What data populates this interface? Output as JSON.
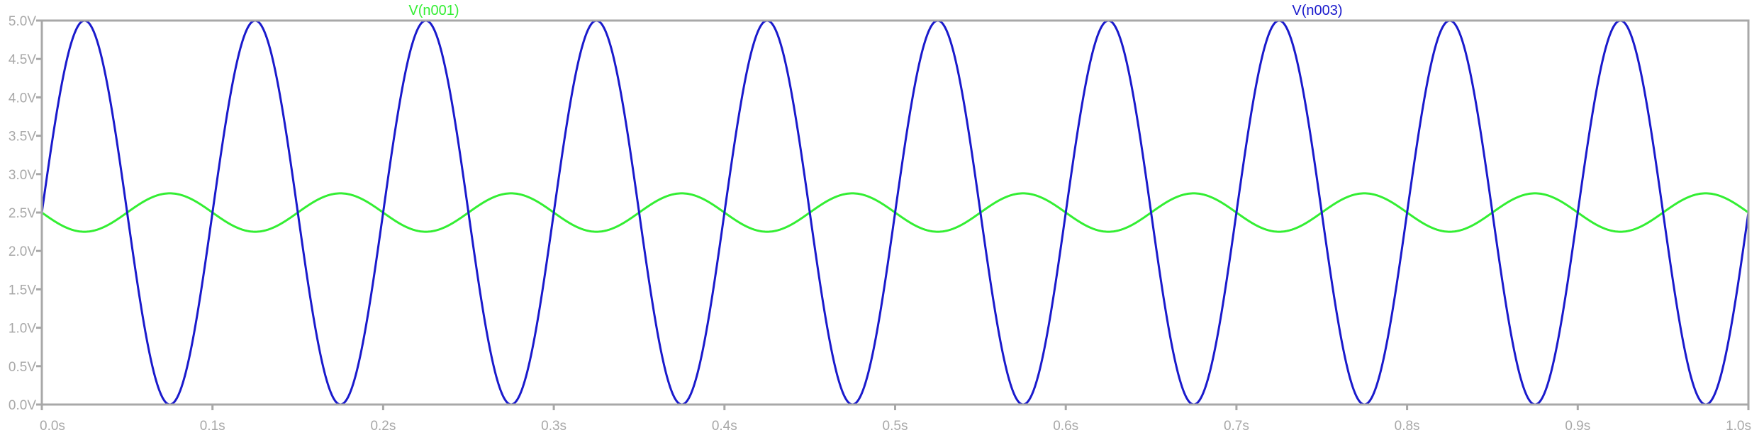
{
  "chart_data": {
    "type": "line",
    "x_range": [
      0.0,
      1.0
    ],
    "y_range": [
      0.0,
      5.0
    ],
    "x_ticks": [
      {
        "value": 0.0,
        "label": "0.0s"
      },
      {
        "value": 0.1,
        "label": "0.1s"
      },
      {
        "value": 0.2,
        "label": "0.2s"
      },
      {
        "value": 0.3,
        "label": "0.3s"
      },
      {
        "value": 0.4,
        "label": "0.4s"
      },
      {
        "value": 0.5,
        "label": "0.5s"
      },
      {
        "value": 0.6,
        "label": "0.6s"
      },
      {
        "value": 0.7,
        "label": "0.7s"
      },
      {
        "value": 0.8,
        "label": "0.8s"
      },
      {
        "value": 0.9,
        "label": "0.9s"
      },
      {
        "value": 1.0,
        "label": "1.0s"
      }
    ],
    "y_ticks": [
      {
        "value": 0.0,
        "label": "0.0V"
      },
      {
        "value": 0.5,
        "label": "0.5V"
      },
      {
        "value": 1.0,
        "label": "1.0V"
      },
      {
        "value": 1.5,
        "label": "1.5V"
      },
      {
        "value": 2.0,
        "label": "2.0V"
      },
      {
        "value": 2.5,
        "label": "2.5V"
      },
      {
        "value": 3.0,
        "label": "3.0V"
      },
      {
        "value": 3.5,
        "label": "3.5V"
      },
      {
        "value": 4.0,
        "label": "4.0V"
      },
      {
        "value": 4.5,
        "label": "4.5V"
      },
      {
        "value": 5.0,
        "label": "5.0V"
      }
    ],
    "grid": false,
    "series": [
      {
        "name": "V(n001)",
        "color": "#33ee33",
        "x": [
          0.0,
          0.025,
          0.05,
          0.075,
          0.1,
          0.125,
          0.15,
          0.175,
          0.2,
          0.225,
          0.25,
          0.275,
          0.3,
          0.325,
          0.35,
          0.375,
          0.4,
          0.425,
          0.45,
          0.475,
          0.5,
          0.525,
          0.55,
          0.575,
          0.6,
          0.625,
          0.65,
          0.675,
          0.7,
          0.725,
          0.75,
          0.775,
          0.8,
          0.825,
          0.85,
          0.875,
          0.9,
          0.925,
          0.95,
          0.975,
          1.0
        ],
        "y": [
          2.5,
          2.25,
          2.5,
          2.75,
          2.5,
          2.25,
          2.5,
          2.75,
          2.5,
          2.25,
          2.5,
          2.75,
          2.5,
          2.25,
          2.5,
          2.75,
          2.5,
          2.25,
          2.5,
          2.75,
          2.5,
          2.25,
          2.5,
          2.75,
          2.5,
          2.25,
          2.5,
          2.75,
          2.5,
          2.25,
          2.5,
          2.75,
          2.5,
          2.25,
          2.5,
          2.75,
          2.5,
          2.25,
          2.5,
          2.75,
          2.5
        ]
      },
      {
        "name": "V(n003)",
        "color": "#1a1acc",
        "x": [
          0.0,
          0.025,
          0.05,
          0.075,
          0.1,
          0.125,
          0.15,
          0.175,
          0.2,
          0.225,
          0.25,
          0.275,
          0.3,
          0.325,
          0.35,
          0.375,
          0.4,
          0.425,
          0.45,
          0.475,
          0.5,
          0.525,
          0.55,
          0.575,
          0.6,
          0.625,
          0.65,
          0.675,
          0.7,
          0.725,
          0.75,
          0.775,
          0.8,
          0.825,
          0.85,
          0.875,
          0.9,
          0.925,
          0.95,
          0.975,
          1.0
        ],
        "y": [
          2.5,
          5.0,
          2.5,
          0.0,
          2.5,
          5.0,
          2.5,
          0.0,
          2.5,
          5.0,
          2.5,
          0.0,
          2.5,
          5.0,
          2.5,
          0.0,
          2.5,
          5.0,
          2.5,
          0.0,
          2.5,
          5.0,
          2.5,
          0.0,
          2.5,
          5.0,
          2.5,
          0.0,
          2.5,
          5.0,
          2.5,
          0.0,
          2.5,
          5.0,
          2.5,
          0.0,
          2.5,
          5.0,
          2.5,
          0.0,
          2.5
        ]
      }
    ],
    "colors": {
      "axis": "#a8a8a8",
      "tick_text": "#a8a8a8",
      "background": "#ffffff"
    }
  }
}
